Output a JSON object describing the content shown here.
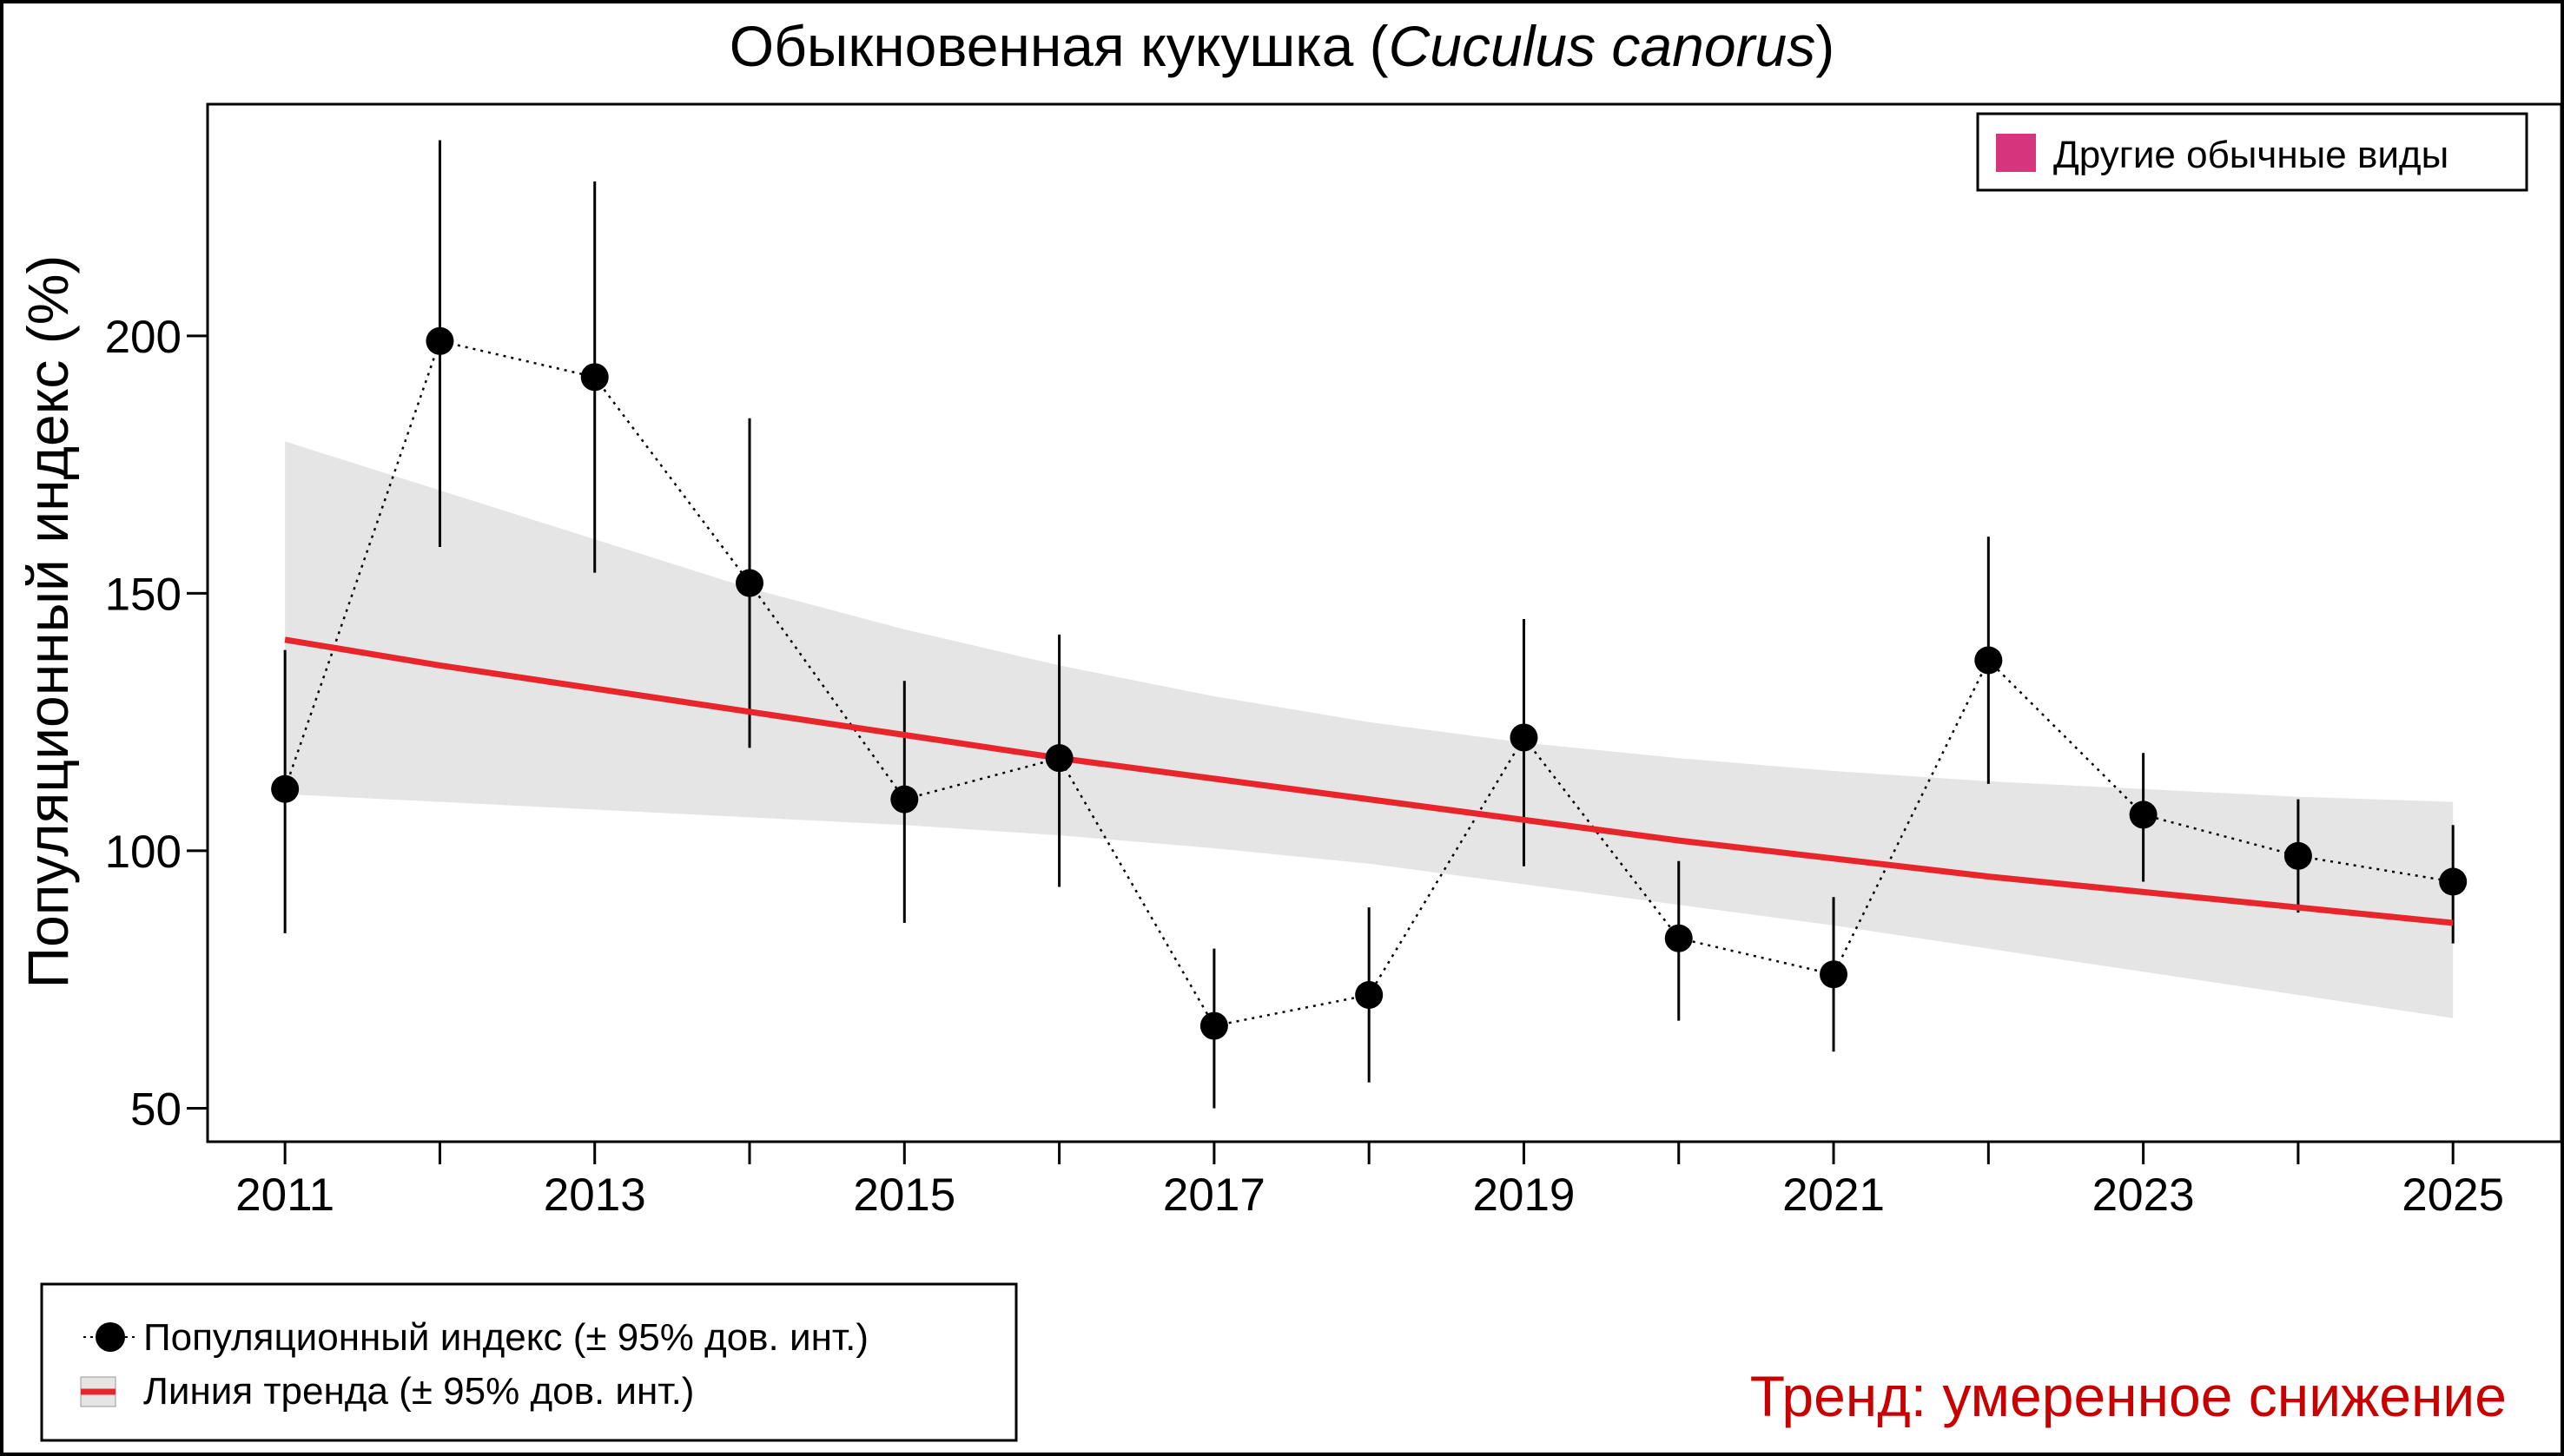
{
  "chart_data": {
    "type": "line",
    "title_main": "Обыкновенная кукушка (",
    "title_species": "Cuculus canorus",
    "title_close": ")",
    "ylabel": "Популяционный индекс (%)",
    "xlabel": "",
    "x": [
      2011,
      2012,
      2013,
      2014,
      2015,
      2016,
      2017,
      2018,
      2019,
      2020,
      2021,
      2022,
      2023,
      2024,
      2025
    ],
    "xticks": [
      2011,
      2012,
      2013,
      2014,
      2015,
      2016,
      2017,
      2018,
      2019,
      2020,
      2021,
      2022,
      2023,
      2024,
      2025
    ],
    "xtick_labels": [
      "2011",
      "",
      "2013",
      "",
      "2015",
      "",
      "2017",
      "",
      "2019",
      "",
      "2021",
      "",
      "2023",
      "",
      "2025"
    ],
    "yticks": [
      50,
      100,
      150,
      200
    ],
    "xlim": [
      2010.5,
      2025.7
    ],
    "ylim": [
      43.5,
      245
    ],
    "grid": false,
    "series": [
      {
        "name": "Популяционный индекс (± 95% дов. инт.)",
        "values": [
          112,
          199,
          192,
          152,
          110,
          118,
          66,
          72,
          122,
          83,
          76,
          137,
          107,
          99,
          94
        ],
        "lower": [
          84,
          159,
          154,
          120,
          86,
          93,
          50,
          55,
          97,
          67,
          61,
          113,
          94,
          88,
          82
        ],
        "upper": [
          139,
          238,
          230,
          184,
          133,
          142,
          81,
          89,
          145,
          98,
          91,
          161,
          119,
          110,
          105
        ],
        "color": "#000000",
        "style": "dotted-line-with-points"
      },
      {
        "name": "Линия тренда (± 95% дов. инт.)",
        "values": [
          141,
          136,
          131.5,
          127,
          122.5,
          118,
          114,
          110,
          106,
          102,
          98.5,
          95,
          92,
          89,
          86
        ],
        "lower": [
          111,
          109.5,
          108,
          106.5,
          105,
          103,
          100.5,
          97.5,
          93.5,
          89.5,
          85.5,
          81,
          76.5,
          72,
          67.5
        ],
        "upper": [
          179.5,
          170,
          160.5,
          151,
          143,
          136,
          130,
          125,
          121,
          118,
          115.5,
          113.5,
          112,
          110.5,
          109.5
        ],
        "color": "#e8252a",
        "band_color": "#e5e5e5"
      }
    ],
    "legend_top_right": {
      "label": "Другие обычные виды",
      "swatch_color": "#d6357e"
    },
    "legend_bottom_left": [
      "Популяционный индекс (± 95% дов. инт.)",
      "Линия тренда (± 95% дов. инт.)"
    ],
    "trend_text": "Тренд: умеренное снижение",
    "trend_text_color": "#c80000"
  }
}
